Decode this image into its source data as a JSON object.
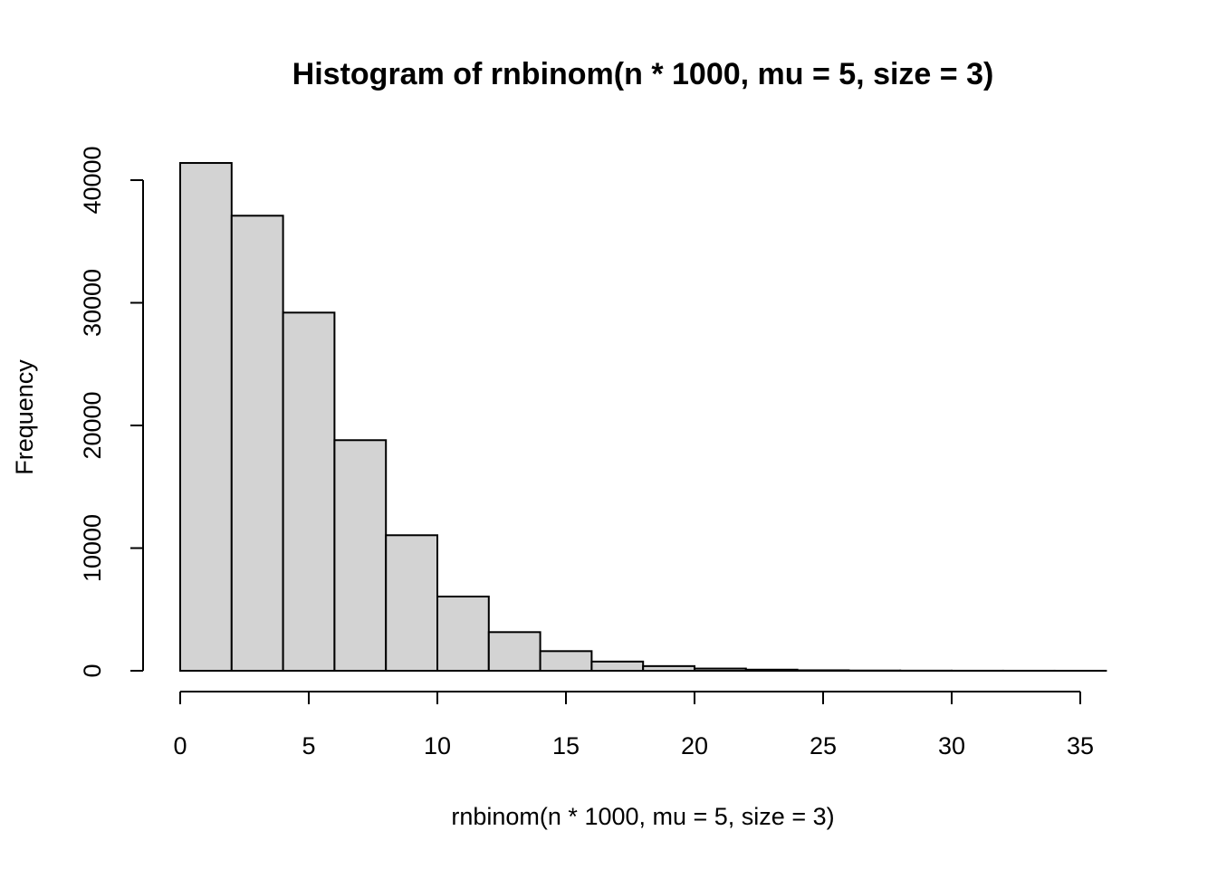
{
  "chart_data": {
    "type": "bar",
    "title": "Histogram of rnbinom(n * 1000, mu = 5, size = 3)",
    "xlabel": "rnbinom(n * 1000, mu = 5, size = 3)",
    "ylabel": "Frequency",
    "bin_edges": [
      0,
      2,
      4,
      6,
      8,
      10,
      12,
      14,
      16,
      18,
      20,
      22,
      24,
      26,
      28,
      30,
      32,
      34,
      36
    ],
    "values": [
      41400,
      37100,
      29200,
      18800,
      11050,
      6050,
      3150,
      1600,
      750,
      380,
      180,
      90,
      40,
      20,
      10,
      5,
      3,
      2
    ],
    "xlim": [
      0,
      36
    ],
    "ylim": [
      0,
      42000
    ],
    "x_ticks": [
      0,
      5,
      10,
      15,
      20,
      25,
      30,
      35
    ],
    "x_tick_labels": [
      "0",
      "5",
      "10",
      "15",
      "20",
      "25",
      "30",
      "35"
    ],
    "y_ticks": [
      0,
      10000,
      20000,
      30000,
      40000
    ],
    "y_tick_labels": [
      "0",
      "10000",
      "20000",
      "30000",
      "40000"
    ],
    "grid": false,
    "bar_color": "#d3d3d3",
    "edge_color": "#000000"
  }
}
